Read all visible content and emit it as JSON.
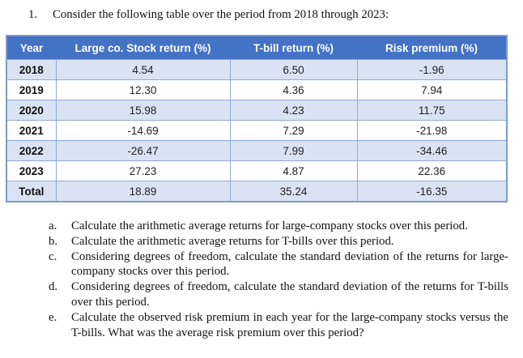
{
  "title": {
    "number": "1.",
    "text": "Consider the following table over the period from 2018 through 2023:"
  },
  "table": {
    "headers": [
      "Year",
      "Large co. Stock return (%)",
      "T-bill return (%)",
      "Risk premium (%)"
    ],
    "rows": [
      {
        "year": "2018",
        "stock": "4.54",
        "tbill": "6.50",
        "premium": "-1.96"
      },
      {
        "year": "2019",
        "stock": "12.30",
        "tbill": "4.36",
        "premium": "7.94"
      },
      {
        "year": "2020",
        "stock": "15.98",
        "tbill": "4.23",
        "premium": "11.75"
      },
      {
        "year": "2021",
        "stock": "-14.69",
        "tbill": "7.29",
        "premium": "-21.98"
      },
      {
        "year": "2022",
        "stock": "-26.47",
        "tbill": "7.99",
        "premium": "-34.46"
      },
      {
        "year": "2023",
        "stock": "27.23",
        "tbill": "4.87",
        "premium": "22.36"
      },
      {
        "year": "Total",
        "stock": "18.89",
        "tbill": "35.24",
        "premium": "-16.35"
      }
    ]
  },
  "questions": [
    {
      "letter": "a.",
      "text": "Calculate the arithmetic average returns for large-company stocks over this period."
    },
    {
      "letter": "b.",
      "text": "Calculate the arithmetic average returns for T-bills over this period."
    },
    {
      "letter": "c.",
      "text": "Considering degrees of freedom, calculate the standard deviation of the returns for large-company stocks over this period."
    },
    {
      "letter": "d.",
      "text": "Considering degrees of freedom, calculate the standard deviation of the returns for T-bills over this period."
    },
    {
      "letter": "e.",
      "text": "Calculate the observed risk premium in each year for the large-company stocks versus the T-bills. What was the average risk premium over this period?"
    }
  ],
  "colors": {
    "header_bg": "#4472C4",
    "header_text": "#FFFFFF",
    "band_row_bg": "#DAE3F3",
    "plain_row_bg": "#FFFFFF",
    "border": "#8EAADB"
  }
}
